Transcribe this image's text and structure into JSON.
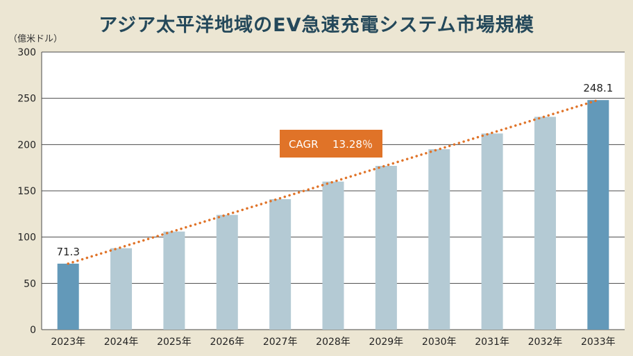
{
  "title": "アジア太平洋地域のEV急速充電システム市場規模",
  "unit_label": "（億米ドル）",
  "colors": {
    "background": "#ece6d3",
    "plot_background": "#ffffff",
    "bar_default": "#b4cad4",
    "bar_highlight": "#6399b9",
    "trend_line": "#e07328",
    "cagr_box": "#e07328",
    "title": "#24485a"
  },
  "chart_data": {
    "type": "bar",
    "title": "アジア太平洋地域のEV急速充電システム市場規模",
    "ylabel": "（億米ドル）",
    "categories": [
      "2023年",
      "2024年",
      "2025年",
      "2026年",
      "2027年",
      "2028年",
      "2029年",
      "2030年",
      "2031年",
      "2032年",
      "2033年"
    ],
    "values": [
      71.3,
      88,
      106,
      124,
      141,
      160,
      177,
      195,
      212,
      230,
      248.1
    ],
    "highlighted": [
      "2023年",
      "2033年"
    ],
    "data_labels": {
      "2023年": "71.3",
      "2033年": "248.1"
    },
    "yticks": [
      0,
      50,
      100,
      150,
      200,
      250,
      300
    ],
    "ylim": [
      0,
      300
    ],
    "grid": true,
    "trend_line": {
      "style": "dotted",
      "from": "2023年",
      "to": "2033年"
    },
    "annotation": {
      "label": "CAGR",
      "value": "13.28％"
    }
  }
}
